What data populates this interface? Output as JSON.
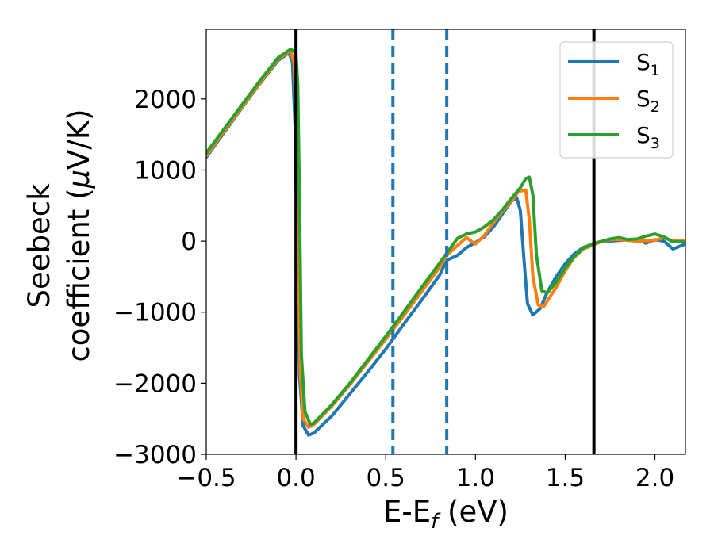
{
  "chart_data": {
    "type": "line",
    "xlabel": {
      "main": "E-E",
      "sub": "f",
      "tail": " (eV)"
    },
    "ylabel": {
      "line1": "Seebeck",
      "line2_main": "coefficient  (",
      "line2_mu": "μ",
      "line2_tail": "V/K)"
    },
    "xlim": [
      -0.5,
      2.17
    ],
    "ylim": [
      -3000,
      2980
    ],
    "xticks": [
      -0.5,
      0.0,
      0.5,
      1.0,
      1.5,
      2.0
    ],
    "xtick_labels": [
      "−0.5",
      "0.0",
      "0.5",
      "1.0",
      "1.5",
      "2.0"
    ],
    "yticks": [
      -3000,
      -2000,
      -1000,
      0,
      1000,
      2000
    ],
    "ytick_labels": [
      "−3000",
      "−2000",
      "−1000",
      "0",
      "1000",
      "2000"
    ],
    "grid": false,
    "legend_position": "top-right",
    "vlines": [
      {
        "x": 0.0,
        "style": "solid",
        "color": "#000000"
      },
      {
        "x": 1.66,
        "style": "solid",
        "color": "#000000"
      },
      {
        "x": 0.54,
        "style": "dashed",
        "color": "#1f77b4"
      },
      {
        "x": 0.84,
        "style": "dashed",
        "color": "#1f77b4"
      }
    ],
    "series": [
      {
        "name_main": "S",
        "name_sub": "1",
        "color": "#1f77b4",
        "points": [
          [
            -0.5,
            1180
          ],
          [
            -0.4,
            1530
          ],
          [
            -0.3,
            1880
          ],
          [
            -0.2,
            2220
          ],
          [
            -0.1,
            2540
          ],
          [
            -0.04,
            2650
          ],
          [
            -0.02,
            2520
          ],
          [
            -0.005,
            1600
          ],
          [
            0.005,
            200
          ],
          [
            0.02,
            -1900
          ],
          [
            0.04,
            -2600
          ],
          [
            0.07,
            -2730
          ],
          [
            0.1,
            -2700
          ],
          [
            0.2,
            -2460
          ],
          [
            0.3,
            -2150
          ],
          [
            0.4,
            -1840
          ],
          [
            0.5,
            -1520
          ],
          [
            0.6,
            -1170
          ],
          [
            0.7,
            -830
          ],
          [
            0.8,
            -480
          ],
          [
            0.84,
            -270
          ],
          [
            0.9,
            -200
          ],
          [
            0.95,
            -90
          ],
          [
            1.0,
            -20
          ],
          [
            1.05,
            60
          ],
          [
            1.1,
            200
          ],
          [
            1.15,
            380
          ],
          [
            1.2,
            560
          ],
          [
            1.23,
            610
          ],
          [
            1.25,
            430
          ],
          [
            1.27,
            -250
          ],
          [
            1.29,
            -880
          ],
          [
            1.32,
            -1040
          ],
          [
            1.36,
            -950
          ],
          [
            1.4,
            -720
          ],
          [
            1.45,
            -500
          ],
          [
            1.5,
            -320
          ],
          [
            1.55,
            -180
          ],
          [
            1.6,
            -90
          ],
          [
            1.66,
            -40
          ],
          [
            1.7,
            -10
          ],
          [
            1.8,
            10
          ],
          [
            1.9,
            20
          ],
          [
            1.95,
            -30
          ],
          [
            2.0,
            20
          ],
          [
            2.05,
            0
          ],
          [
            2.1,
            -110
          ],
          [
            2.17,
            -40
          ]
        ]
      },
      {
        "name_main": "S",
        "name_sub": "2",
        "color": "#ff7f0e",
        "points": [
          [
            -0.5,
            1200
          ],
          [
            -0.4,
            1550
          ],
          [
            -0.3,
            1890
          ],
          [
            -0.2,
            2230
          ],
          [
            -0.1,
            2560
          ],
          [
            -0.03,
            2680
          ],
          [
            -0.01,
            2500
          ],
          [
            0.0,
            1600
          ],
          [
            0.01,
            0
          ],
          [
            0.025,
            -1900
          ],
          [
            0.04,
            -2500
          ],
          [
            0.07,
            -2620
          ],
          [
            0.1,
            -2580
          ],
          [
            0.2,
            -2320
          ],
          [
            0.3,
            -2020
          ],
          [
            0.4,
            -1700
          ],
          [
            0.5,
            -1380
          ],
          [
            0.6,
            -1050
          ],
          [
            0.7,
            -710
          ],
          [
            0.8,
            -370
          ],
          [
            0.84,
            -200
          ],
          [
            0.9,
            -60
          ],
          [
            0.95,
            50
          ],
          [
            0.98,
            -10
          ],
          [
            1.0,
            -40
          ],
          [
            1.05,
            80
          ],
          [
            1.1,
            260
          ],
          [
            1.15,
            420
          ],
          [
            1.2,
            560
          ],
          [
            1.24,
            700
          ],
          [
            1.28,
            720
          ],
          [
            1.3,
            300
          ],
          [
            1.32,
            -500
          ],
          [
            1.35,
            -900
          ],
          [
            1.38,
            -920
          ],
          [
            1.45,
            -650
          ],
          [
            1.5,
            -420
          ],
          [
            1.55,
            -230
          ],
          [
            1.6,
            -110
          ],
          [
            1.66,
            -50
          ],
          [
            1.7,
            -10
          ],
          [
            1.75,
            20
          ],
          [
            1.8,
            20
          ],
          [
            1.85,
            10
          ],
          [
            1.9,
            0
          ],
          [
            2.0,
            10
          ],
          [
            2.05,
            50
          ],
          [
            2.1,
            0
          ],
          [
            2.17,
            10
          ]
        ]
      },
      {
        "name_main": "S",
        "name_sub": "3",
        "color": "#2ca02c",
        "points": [
          [
            -0.5,
            1240
          ],
          [
            -0.4,
            1580
          ],
          [
            -0.3,
            1920
          ],
          [
            -0.2,
            2260
          ],
          [
            -0.1,
            2580
          ],
          [
            -0.03,
            2700
          ],
          [
            0.0,
            2650
          ],
          [
            0.01,
            2200
          ],
          [
            0.02,
            500
          ],
          [
            0.03,
            -1600
          ],
          [
            0.05,
            -2400
          ],
          [
            0.08,
            -2580
          ],
          [
            0.1,
            -2560
          ],
          [
            0.2,
            -2300
          ],
          [
            0.3,
            -2000
          ],
          [
            0.4,
            -1670
          ],
          [
            0.5,
            -1340
          ],
          [
            0.6,
            -1000
          ],
          [
            0.7,
            -650
          ],
          [
            0.8,
            -310
          ],
          [
            0.84,
            -170
          ],
          [
            0.9,
            40
          ],
          [
            0.95,
            100
          ],
          [
            1.0,
            130
          ],
          [
            1.05,
            200
          ],
          [
            1.1,
            300
          ],
          [
            1.15,
            440
          ],
          [
            1.2,
            600
          ],
          [
            1.25,
            750
          ],
          [
            1.28,
            880
          ],
          [
            1.3,
            900
          ],
          [
            1.32,
            650
          ],
          [
            1.34,
            -200
          ],
          [
            1.37,
            -700
          ],
          [
            1.4,
            -730
          ],
          [
            1.45,
            -580
          ],
          [
            1.5,
            -380
          ],
          [
            1.55,
            -220
          ],
          [
            1.6,
            -100
          ],
          [
            1.66,
            -30
          ],
          [
            1.7,
            -5
          ],
          [
            1.75,
            30
          ],
          [
            1.8,
            50
          ],
          [
            1.85,
            20
          ],
          [
            1.9,
            30
          ],
          [
            1.95,
            70
          ],
          [
            2.0,
            100
          ],
          [
            2.05,
            60
          ],
          [
            2.1,
            -10
          ],
          [
            2.17,
            -10
          ]
        ]
      }
    ]
  }
}
